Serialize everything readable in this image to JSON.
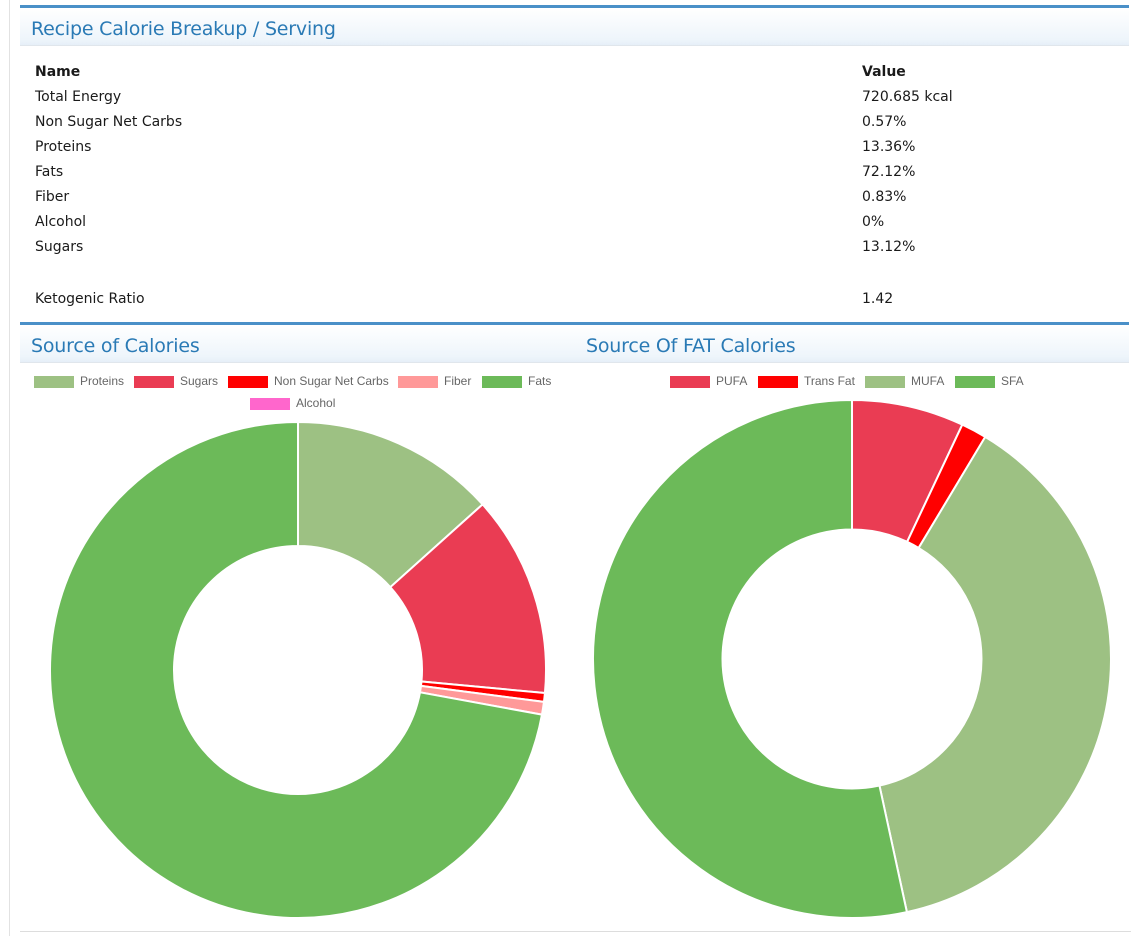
{
  "breakup": {
    "title": "Recipe Calorie Breakup / Serving",
    "header": {
      "name": "Name",
      "value": "Value"
    },
    "rows": [
      {
        "name": "Total Energy",
        "value": "720.685 kcal"
      },
      {
        "name": "Non Sugar Net Carbs",
        "value": "0.57%"
      },
      {
        "name": "Proteins",
        "value": "13.36%"
      },
      {
        "name": "Fats",
        "value": "72.12%"
      },
      {
        "name": "Fiber",
        "value": "0.83%"
      },
      {
        "name": "Alcohol",
        "value": "0%"
      },
      {
        "name": "Sugars",
        "value": "13.12%"
      }
    ],
    "keto": {
      "name": "Ketogenic Ratio",
      "value": "1.42"
    }
  },
  "chart_data": [
    {
      "type": "pie",
      "title": "Source of Calories",
      "legend_position": "top",
      "categories": [
        "Proteins",
        "Sugars",
        "Non Sugar Net Carbs",
        "Fiber",
        "Fats",
        "Alcohol"
      ],
      "values": [
        13.36,
        13.12,
        0.57,
        0.83,
        72.12,
        0
      ],
      "colors": [
        "#9dc183",
        "#ea3c53",
        "#ff0000",
        "#ff9999",
        "#6cba59",
        "#ff66cc"
      ]
    },
    {
      "type": "pie",
      "title": "Source Of FAT Calories",
      "legend_position": "top",
      "categories": [
        "PUFA",
        "Trans Fat",
        "MUFA",
        "SFA"
      ],
      "values": [
        7.0,
        1.6,
        38.0,
        53.4
      ],
      "colors": [
        "#ea3c53",
        "#ff0000",
        "#9dc183",
        "#6cba59"
      ]
    }
  ]
}
